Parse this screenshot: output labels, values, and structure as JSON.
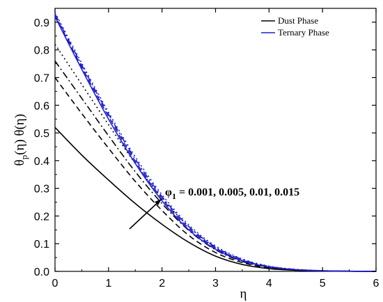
{
  "chart_data": {
    "type": "line",
    "xlabel": "η",
    "ylabel": "θp(η) θ(η)",
    "xlim": [
      0,
      6
    ],
    "ylim": [
      0,
      0.95
    ],
    "xticks": [
      0,
      1,
      2,
      3,
      4,
      5,
      6
    ],
    "yticks": [
      0.0,
      0.1,
      0.2,
      0.3,
      0.4,
      0.5,
      0.6,
      0.7,
      0.8,
      0.9
    ],
    "grid": false,
    "legend": {
      "placement": "top-right",
      "entries": [
        {
          "label": "Dust  Phase",
          "color": "#000000"
        },
        {
          "label": "Ternary  Phase",
          "color": "#1f1fd0"
        }
      ]
    },
    "annotation": {
      "symbol": "φ",
      "subscript": "1",
      "text": " = 0.001, 0.005, 0.01, 0.015"
    },
    "x": [
      0,
      0.5,
      1,
      1.5,
      2,
      2.5,
      3,
      3.5,
      4,
      4.5,
      5,
      5.5,
      6
    ],
    "series": [
      {
        "group": "Dust Phase",
        "phi1": "0.001",
        "style": "solid",
        "color": "#000000",
        "values": [
          0.52,
          0.42,
          0.33,
          0.245,
          0.17,
          0.105,
          0.055,
          0.025,
          0.01,
          0.004,
          0.0015,
          0.0005,
          0.0
        ]
      },
      {
        "group": "Dust Phase",
        "phi1": "0.005",
        "style": "dash",
        "color": "#000000",
        "values": [
          0.7,
          0.57,
          0.445,
          0.325,
          0.22,
          0.13,
          0.068,
          0.032,
          0.013,
          0.005,
          0.002,
          0.0006,
          0.0
        ]
      },
      {
        "group": "Dust Phase",
        "phi1": "0.01",
        "style": "dashdot",
        "color": "#000000",
        "values": [
          0.76,
          0.625,
          0.49,
          0.36,
          0.245,
          0.148,
          0.078,
          0.036,
          0.015,
          0.006,
          0.0022,
          0.0007,
          0.0
        ]
      },
      {
        "group": "Dust Phase",
        "phi1": "0.015",
        "style": "dot",
        "color": "#000000",
        "values": [
          0.82,
          0.675,
          0.53,
          0.39,
          0.265,
          0.162,
          0.086,
          0.04,
          0.017,
          0.0065,
          0.0025,
          0.0008,
          0.0
        ]
      },
      {
        "group": "Ternary Phase",
        "phi1": "0.001",
        "style": "solid",
        "color": "#1f1fd0",
        "values": [
          0.92,
          0.73,
          0.55,
          0.39,
          0.255,
          0.15,
          0.08,
          0.038,
          0.016,
          0.006,
          0.002,
          0.0006,
          0.0
        ]
      },
      {
        "group": "Ternary Phase",
        "phi1": "0.005",
        "style": "dash",
        "color": "#1f1fd0",
        "values": [
          0.925,
          0.738,
          0.56,
          0.398,
          0.262,
          0.156,
          0.084,
          0.04,
          0.017,
          0.0065,
          0.0022,
          0.0007,
          0.0
        ]
      },
      {
        "group": "Ternary Phase",
        "phi1": "0.01",
        "style": "dashdot",
        "color": "#1f1fd0",
        "values": [
          0.93,
          0.745,
          0.568,
          0.406,
          0.27,
          0.162,
          0.088,
          0.043,
          0.018,
          0.007,
          0.0025,
          0.0008,
          0.0
        ]
      },
      {
        "group": "Ternary Phase",
        "phi1": "0.015",
        "style": "dot",
        "color": "#1f1fd0",
        "values": [
          0.935,
          0.752,
          0.575,
          0.414,
          0.277,
          0.168,
          0.092,
          0.045,
          0.019,
          0.0075,
          0.0027,
          0.0009,
          0.0
        ]
      }
    ]
  }
}
